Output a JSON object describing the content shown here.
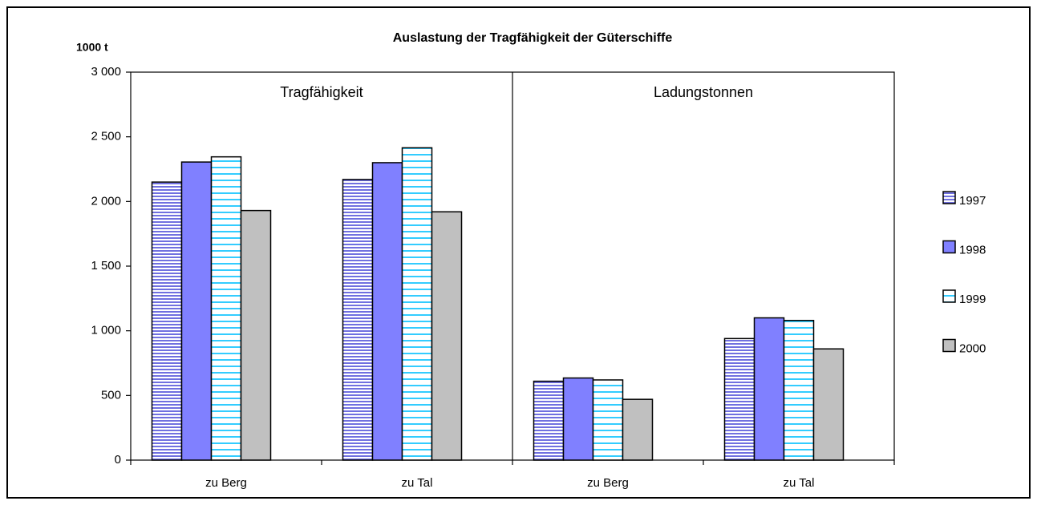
{
  "chart_data": {
    "type": "bar",
    "title": "Auslastung der Tragfähigkeit der Güterschiffe",
    "y_label": "1000 t",
    "groups": [
      "Tragfähigkeit",
      "Ladungstonnen"
    ],
    "categories": [
      "zu Berg",
      "zu Tal",
      "zu Berg",
      "zu Tal"
    ],
    "series": [
      {
        "name": "1997",
        "color": "#7070e0",
        "pattern": "stripes",
        "values": [
          2150,
          2170,
          610,
          940
        ]
      },
      {
        "name": "1998",
        "color": "#8080ff",
        "values": [
          2305,
          2300,
          635,
          1100
        ]
      },
      {
        "name": "1999",
        "color": "#33ccff",
        "pattern": "stripes",
        "values": [
          2345,
          2415,
          620,
          1080
        ]
      },
      {
        "name": "2000",
        "color": "#c0c0c0",
        "values": [
          1930,
          1920,
          470,
          860
        ]
      }
    ],
    "ylim": [
      0,
      3000
    ],
    "yticks": [
      0,
      500,
      {
        "value": 1000,
        "label": "1 000"
      },
      {
        "value": 1500,
        "label": "1 500"
      },
      {
        "value": 2000,
        "label": "2 000"
      },
      {
        "value": 2500,
        "label": "2 500"
      },
      {
        "value": 3000,
        "label": "3 000"
      }
    ],
    "grid": false,
    "legend": "right"
  }
}
